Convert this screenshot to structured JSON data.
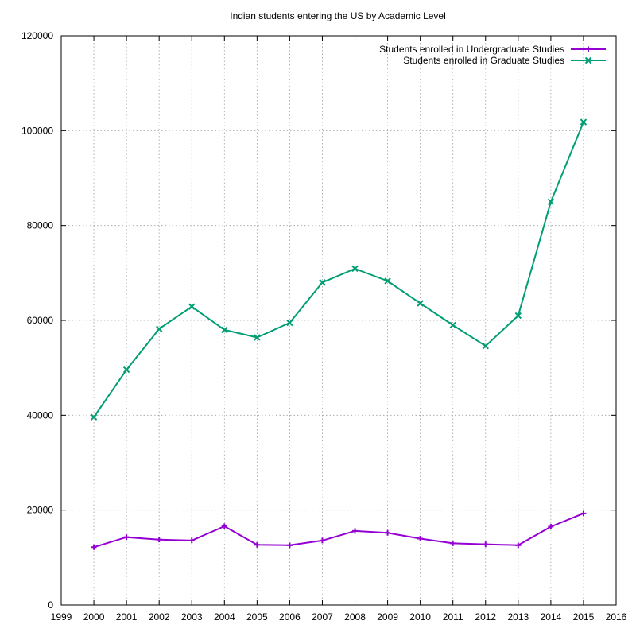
{
  "chart_data": {
    "type": "line",
    "title": "Indian students entering the US by Academic Level",
    "xlabel": "",
    "ylabel": "",
    "xlim": [
      1999,
      2016
    ],
    "ylim": [
      0,
      120000
    ],
    "xticks": [
      1999,
      2000,
      2001,
      2002,
      2003,
      2004,
      2005,
      2006,
      2007,
      2008,
      2009,
      2010,
      2011,
      2012,
      2013,
      2014,
      2015,
      2016
    ],
    "yticks": [
      0,
      20000,
      40000,
      60000,
      80000,
      100000,
      120000
    ],
    "grid": true,
    "legend_position": "top-right",
    "x": [
      2000,
      2001,
      2002,
      2003,
      2004,
      2005,
      2006,
      2007,
      2008,
      2009,
      2010,
      2011,
      2012,
      2013,
      2014,
      2015
    ],
    "series": [
      {
        "name": "Students enrolled in Undergraduate Studies",
        "color": "#9400d3",
        "marker": "plus",
        "values": [
          12200,
          14300,
          13800,
          13600,
          16600,
          12700,
          12600,
          13600,
          15600,
          15200,
          14000,
          13000,
          12800,
          12600,
          16500,
          19300
        ]
      },
      {
        "name": "Students enrolled in Graduate Studies",
        "color": "#009e73",
        "marker": "cross",
        "values": [
          39600,
          49600,
          58200,
          62900,
          58000,
          56400,
          59500,
          68000,
          70900,
          68300,
          63600,
          59000,
          54600,
          61000,
          85000,
          101800
        ]
      }
    ]
  }
}
